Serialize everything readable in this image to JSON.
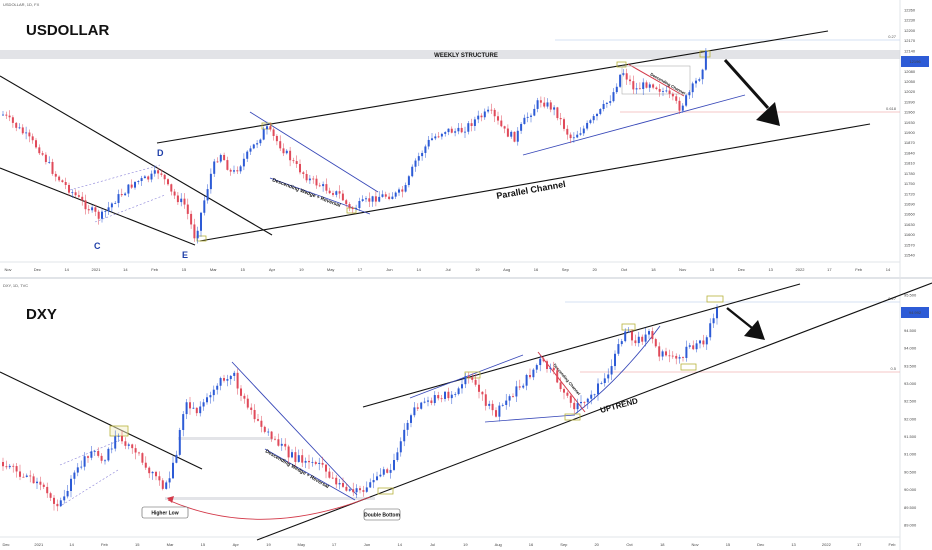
{
  "colors": {
    "up": "#2d5bd6",
    "down": "#e04a5a",
    "trend": "#111111",
    "wedge": "#3848b8",
    "red_line": "#d33a4a",
    "box": "#b8b23a",
    "fib": "#c9d6ef",
    "fib_red": "#f1b5b5"
  },
  "header": {
    "top_meta": "USDOLLAR, 1D, FX",
    "bottom_meta": "DXY, 1D, TVC"
  },
  "chart_data": [
    {
      "type": "candlestick",
      "title": "USDOLLAR",
      "annotations": {
        "weekly_structure": "WEEKLY STRUCTURE",
        "parallel_channel": "Parallel Channel",
        "wedge": "Descending Wedge + Reversal",
        "wedge_small": "Descending Channel",
        "wave_c": "C",
        "wave_d": "D",
        "wave_e": "E",
        "fib_top": "0.27",
        "fib_mid": "0.618"
      },
      "price_ticks": [
        "12260",
        "12230",
        "12200",
        "12170",
        "12140",
        "12110",
        "12080",
        "12050",
        "12020",
        "11990",
        "11960",
        "11930",
        "11900",
        "11870",
        "11840",
        "11810",
        "11780",
        "11750",
        "11720",
        "11690",
        "11660",
        "11630",
        "11600",
        "11570",
        "11540"
      ],
      "current_price": "12196",
      "date_ticks": [
        "Nov",
        "Dec",
        "14",
        "2021",
        "14",
        "Feb",
        "15",
        "Mar",
        "15",
        "Apr",
        "19",
        "May",
        "17",
        "Jun",
        "14",
        "Jul",
        "19",
        "Aug",
        "16",
        "Sep",
        "20",
        "Oct",
        "18",
        "Nov",
        "15",
        "Dec",
        "13",
        "2022",
        "17",
        "Feb",
        "14"
      ]
    },
    {
      "type": "candlestick",
      "title": "DXY",
      "annotations": {
        "uptrend": "UPTREND",
        "higher_low": "Higher Low",
        "double_bottom": "Double Bottom",
        "wedge": "Descending Wedge + Reversal",
        "wedge_small": "Descending Channel",
        "fib_top": "0.27",
        "fib_mid": "0.5"
      },
      "price_ticks": [
        "95.500",
        "95.000",
        "94.500",
        "94.000",
        "93.500",
        "93.000",
        "92.500",
        "92.000",
        "91.500",
        "91.000",
        "90.500",
        "90.000",
        "89.500",
        "89.000"
      ],
      "current_price": "94.992",
      "date_ticks": [
        "Dec",
        "2021",
        "14",
        "Feb",
        "15",
        "Mar",
        "15",
        "Apr",
        "19",
        "May",
        "17",
        "Jun",
        "14",
        "Jul",
        "19",
        "Aug",
        "16",
        "Sep",
        "20",
        "Oct",
        "18",
        "Nov",
        "15",
        "Dec",
        "13",
        "2022",
        "17",
        "Feb"
      ]
    }
  ]
}
